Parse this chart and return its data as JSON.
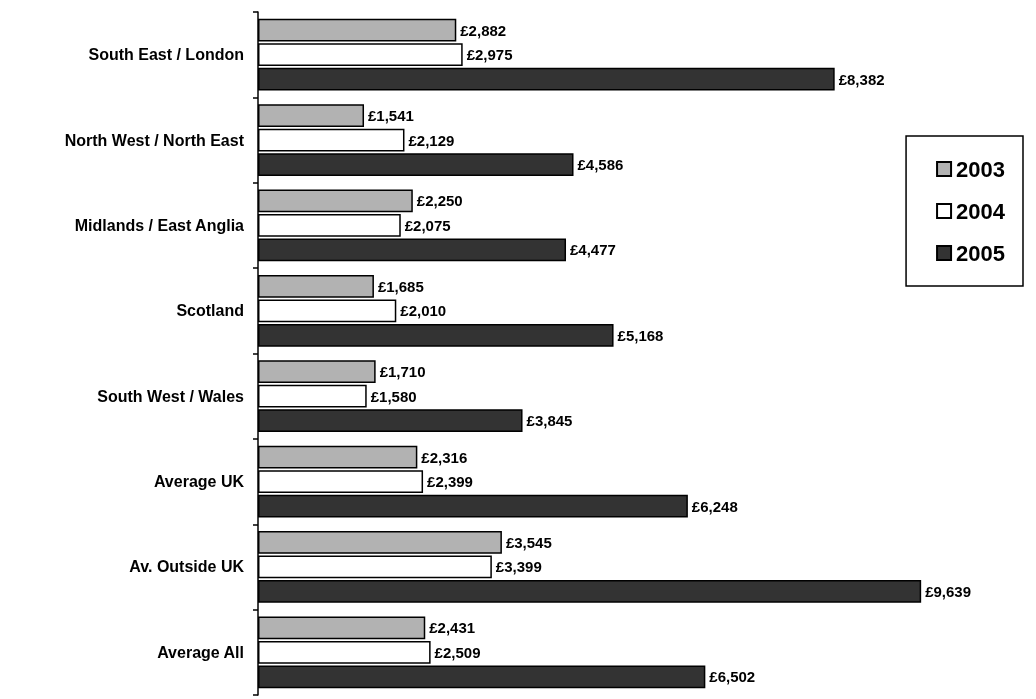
{
  "chart_data": {
    "type": "bar",
    "orientation": "horizontal",
    "categories": [
      "South East / London",
      "North West / North East",
      "Midlands / East Anglia",
      "Scotland",
      "South West / Wales",
      "Average UK",
      "Av. Outside UK",
      "Average All"
    ],
    "series": [
      {
        "name": "2003",
        "color": "#b2b2b2",
        "values": [
          2882,
          1541,
          2250,
          1685,
          1710,
          2316,
          3545,
          2431
        ],
        "value_labels": [
          "£2,882",
          "£1,541",
          "£2,250",
          "£1,685",
          "£1,710",
          "£2,316",
          "£3,545",
          "£2,431"
        ]
      },
      {
        "name": "2004",
        "color": "#ffffff",
        "values": [
          2975,
          2129,
          2075,
          2010,
          1580,
          2399,
          3399,
          2509
        ],
        "value_labels": [
          "£2,975",
          "£2,129",
          "£2,075",
          "£2,010",
          "£1,580",
          "£2,399",
          "£3,399",
          "£2,509"
        ]
      },
      {
        "name": "2005",
        "color": "#333333",
        "values": [
          8382,
          4586,
          4477,
          5168,
          3845,
          6248,
          9639,
          6502
        ],
        "value_labels": [
          "£8,382",
          "£4,586",
          "£4,477",
          "£5,168",
          "£3,845",
          "£6,248",
          "£9,639",
          "£6,502"
        ]
      }
    ],
    "grid": false,
    "legend": "right",
    "tick_labels": "y"
  }
}
